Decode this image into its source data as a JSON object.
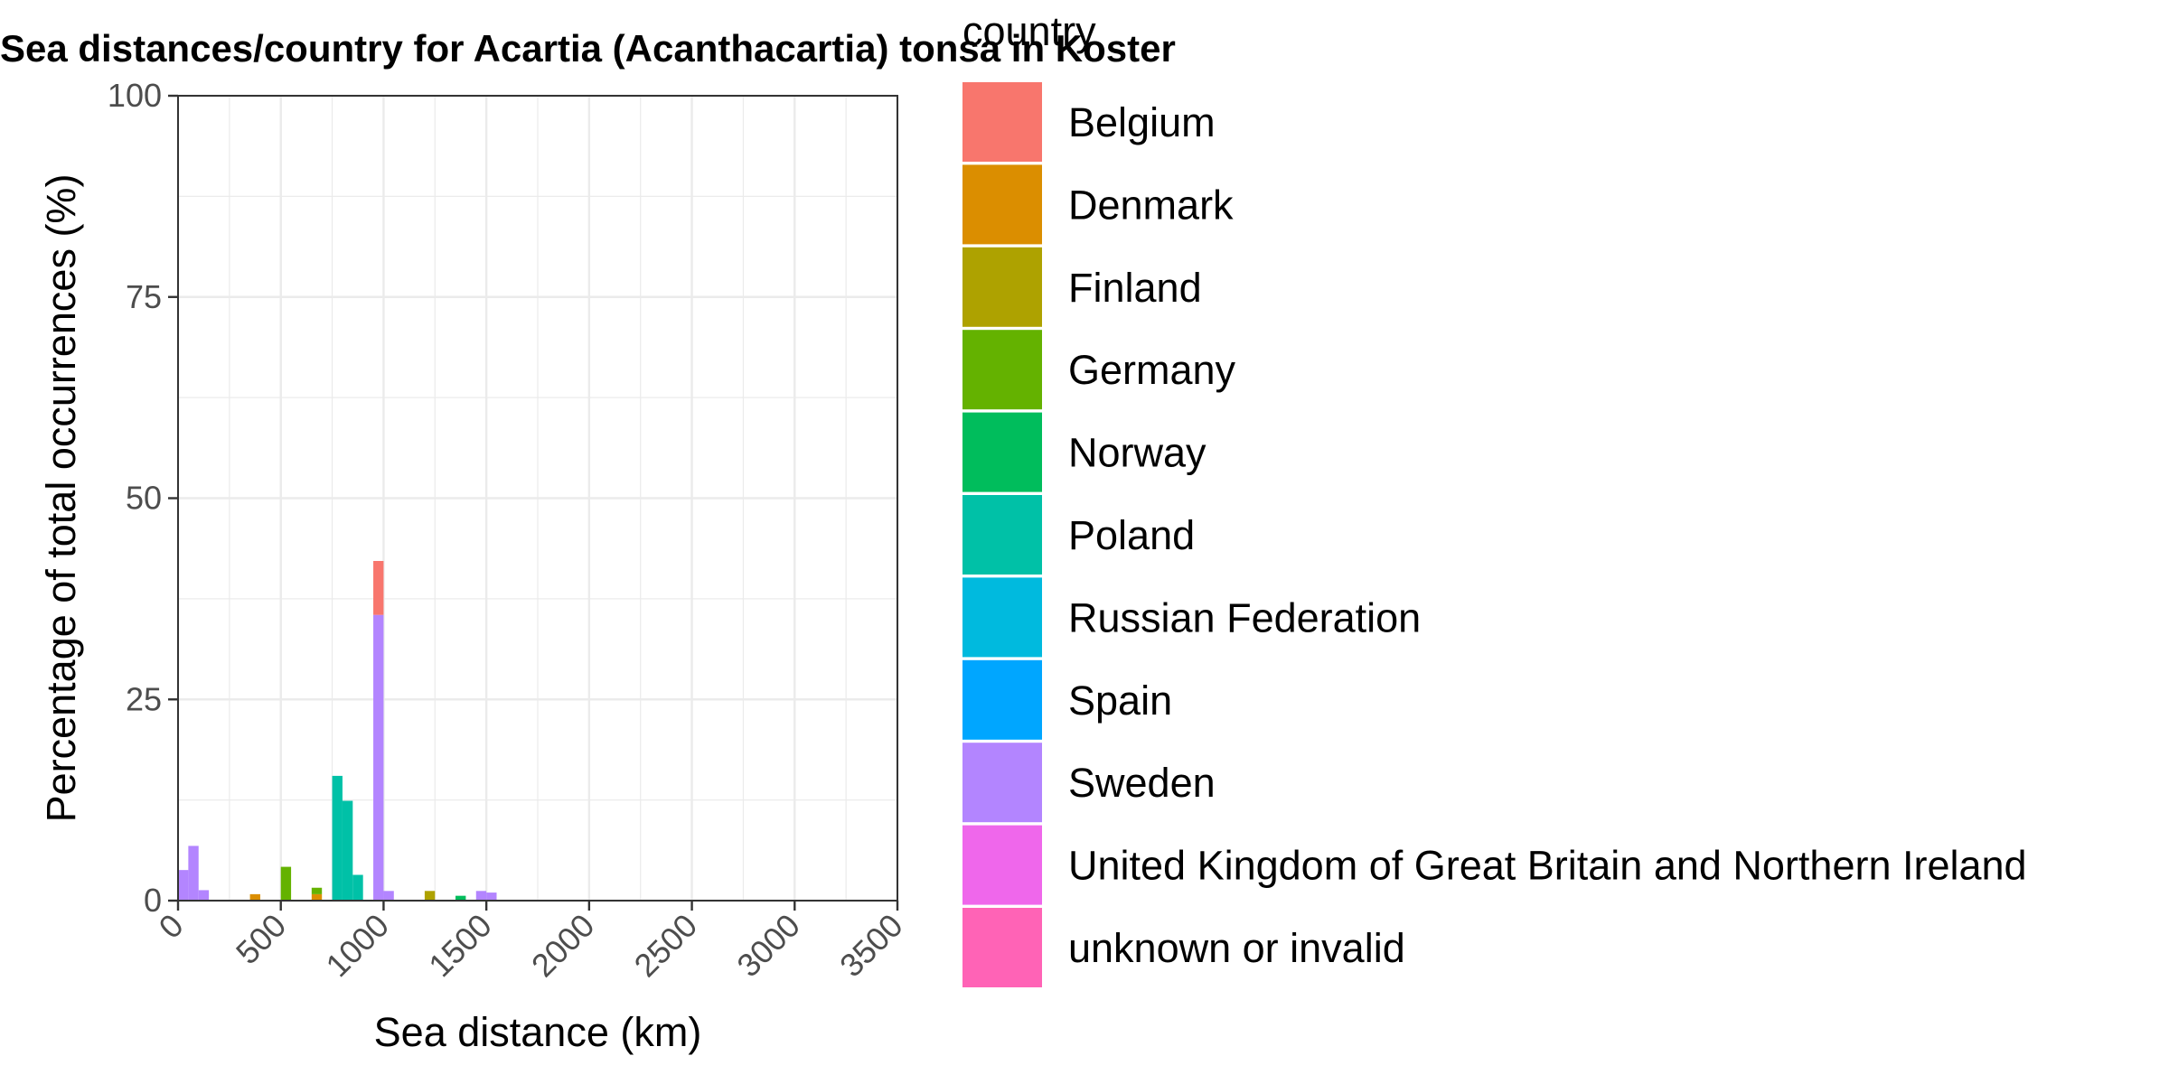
{
  "chart_data": {
    "type": "bar",
    "stacked": true,
    "title": "Sea distances/country for Acartia (Acanthacartia) tonsa in Koster",
    "xlabel": "Sea distance (km)",
    "ylabel": "Percentage of total occurrences (%)",
    "xlim": [
      0,
      3500
    ],
    "ylim": [
      0,
      100
    ],
    "x_ticks": [
      "0",
      "500",
      "1000",
      "1500",
      "2000",
      "2500",
      "3000",
      "3500"
    ],
    "y_ticks": [
      "0",
      "25",
      "50",
      "75",
      "100"
    ],
    "bin_width_km": 50,
    "grid": true,
    "legend": {
      "title": "country",
      "position": "right",
      "entries": [
        {
          "name": "Belgium",
          "color": "#F8766D"
        },
        {
          "name": "Denmark",
          "color": "#DB8E00"
        },
        {
          "name": "Finland",
          "color": "#AEA200"
        },
        {
          "name": "Germany",
          "color": "#64B200"
        },
        {
          "name": "Norway",
          "color": "#00BD5C"
        },
        {
          "name": "Poland",
          "color": "#00C1A7"
        },
        {
          "name": "Russian Federation",
          "color": "#00BADE"
        },
        {
          "name": "Spain",
          "color": "#00A6FF"
        },
        {
          "name": "Sweden",
          "color": "#B385FF"
        },
        {
          "name": "United Kingdom of Great Britain and Northern Ireland",
          "color": "#EF67EB"
        },
        {
          "name": "unknown or invalid",
          "color": "#FF63B6"
        }
      ]
    },
    "series": [
      {
        "name": "Sweden",
        "x": [
          0,
          50,
          100,
          950,
          1000,
          1450,
          1500
        ],
        "values": [
          3.8,
          6.8,
          1.3,
          35.5,
          1.2,
          1.2,
          1.0
        ]
      },
      {
        "name": "Belgium",
        "x": [
          950
        ],
        "values": [
          6.7
        ]
      },
      {
        "name": "Denmark",
        "x": [
          350,
          650
        ],
        "values": [
          0.8,
          0.8
        ]
      },
      {
        "name": "Germany",
        "x": [
          500,
          650
        ],
        "values": [
          4.2,
          0.8
        ]
      },
      {
        "name": "Poland",
        "x": [
          750,
          800,
          850
        ],
        "values": [
          15.5,
          12.4,
          3.2
        ]
      },
      {
        "name": "Finland",
        "x": [
          1200
        ],
        "values": [
          1.2
        ]
      },
      {
        "name": "Norway",
        "x": [
          1350
        ],
        "values": [
          0.6
        ]
      }
    ]
  }
}
